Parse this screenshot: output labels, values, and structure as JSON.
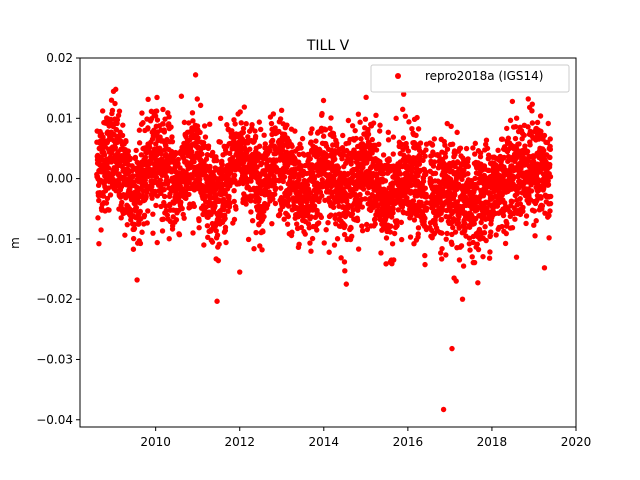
{
  "chart_data": {
    "type": "scatter",
    "title": "TILL V",
    "xlabel": "",
    "ylabel": "m",
    "xlim": [
      2008.2,
      2020.0
    ],
    "ylim": [
      -0.0412,
      0.02
    ],
    "x_ticks": [
      2010,
      2012,
      2014,
      2016,
      2018,
      2020
    ],
    "y_ticks": [
      -0.04,
      -0.03,
      -0.02,
      -0.01,
      0.0,
      0.01,
      0.02
    ],
    "x_tick_labels": [
      "2010",
      "2012",
      "2014",
      "2016",
      "2018",
      "2020"
    ],
    "y_tick_labels": [
      "−0.04",
      "−0.03",
      "−0.02",
      "−0.01",
      "0.00",
      "0.01",
      "0.02"
    ],
    "grid": false,
    "legend_position": "top-right",
    "marker_color": "#ff0000",
    "series": [
      {
        "name": "repro2018a (IGS14)",
        "color": "#ff0000",
        "approx_seasonal_envelope": {
          "x": [
            2008.6,
            2009.0,
            2009.5,
            2010.0,
            2010.5,
            2011.0,
            2011.5,
            2012.0,
            2012.5,
            2013.0,
            2013.5,
            2014.0,
            2014.5,
            2015.0,
            2015.5,
            2016.0,
            2016.5,
            2017.0,
            2017.5,
            2018.0,
            2018.5,
            2019.0,
            2019.4
          ],
          "y": [
            0.002,
            0.004,
            -0.003,
            0.004,
            -0.001,
            0.003,
            -0.004,
            0.004,
            -0.001,
            0.002,
            -0.003,
            0.002,
            -0.002,
            0.002,
            -0.004,
            0.0,
            -0.002,
            -0.003,
            -0.004,
            -0.002,
            0.001,
            0.002,
            0.0
          ]
        },
        "outliers": {
          "x": [
            2008.65,
            2008.95,
            2009.05,
            2010.95,
            2012.0,
            2014.5,
            2015.9,
            2016.85,
            2017.05,
            2017.1,
            2017.15,
            2017.3,
            2019.25
          ],
          "y": [
            -0.0108,
            0.013,
            0.0148,
            0.0172,
            -0.0155,
            -0.0153,
            0.014,
            -0.0383,
            -0.0282,
            -0.0165,
            -0.017,
            -0.02,
            -0.0148
          ]
        }
      }
    ]
  }
}
